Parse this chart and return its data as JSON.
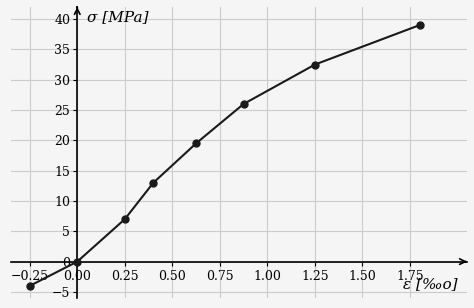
{
  "x": [
    -0.25,
    0,
    0.25,
    0.4,
    0.625,
    0.875,
    1.25,
    1.8
  ],
  "y": [
    -4,
    0,
    7,
    13,
    19.5,
    26,
    32.5,
    39
  ],
  "xlabel": "ε [‰o]",
  "ylabel": "σ [MPa]",
  "xlim": [
    -0.35,
    2.05
  ],
  "ylim": [
    -6,
    42
  ],
  "xticks": [
    -0.25,
    0,
    0.25,
    0.5,
    0.75,
    1.0,
    1.25,
    1.5,
    1.75
  ],
  "yticks": [
    -5,
    0,
    5,
    10,
    15,
    20,
    25,
    30,
    35,
    40
  ],
  "line_color": "#1a1a1a",
  "marker_color": "#1a1a1a",
  "grid_color": "#cccccc",
  "background_color": "#f5f5f5",
  "axis_label_fontsize": 11,
  "tick_fontsize": 9
}
